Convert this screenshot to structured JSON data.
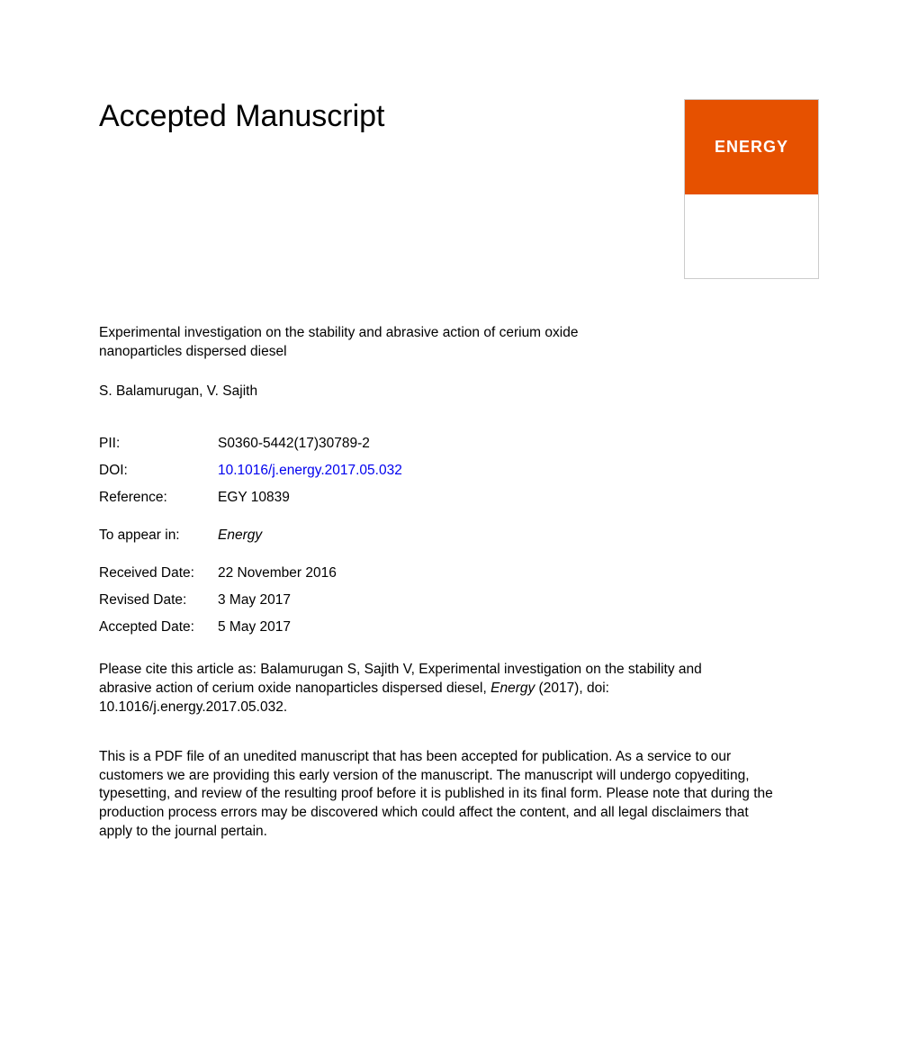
{
  "heading": "Accepted Manuscript",
  "journal_cover": {
    "logo_text": "ENERGY",
    "bg_color": "#e65100",
    "text_color": "#ffffff"
  },
  "article_title": "Experimental investigation on the stability and abrasive action of cerium oxide nanoparticles dispersed diesel",
  "authors": "S. Balamurugan, V. Sajith",
  "meta": {
    "pii_label": "PII:",
    "pii_value": "S0360-5442(17)30789-2",
    "doi_label": "DOI:",
    "doi_value": "10.1016/j.energy.2017.05.032",
    "reference_label": "Reference:",
    "reference_value": "EGY 10839",
    "appear_label": "To appear in:",
    "appear_value": "Energy",
    "received_label": "Received Date:",
    "received_value": "22 November 2016",
    "revised_label": "Revised Date:",
    "revised_value": "3 May 2017",
    "accepted_label": "Accepted Date:",
    "accepted_value": "5 May 2017"
  },
  "citation": {
    "prefix": "Please cite this article as: Balamurugan S, Sajith V, Experimental investigation on the stability and abrasive action of cerium oxide nanoparticles dispersed diesel, ",
    "journal": "Energy",
    "suffix": " (2017), doi: 10.1016/j.energy.2017.05.032."
  },
  "disclaimer": "This is a PDF file of an unedited manuscript that has been accepted for publication. As a service to our customers we are providing this early version of the manuscript. The manuscript will undergo copyediting, typesetting, and review of the resulting proof before it is published in its final form. Please note that during the production process errors may be discovered which could affect the content, and all legal disclaimers that apply to the journal pertain."
}
